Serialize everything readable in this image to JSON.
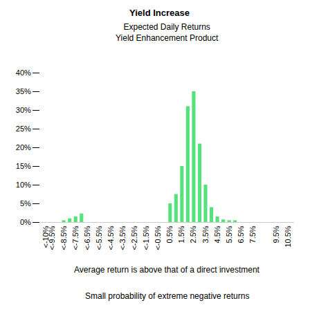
{
  "chart_data": {
    "type": "bar",
    "title": "Yield Increase",
    "subtitle": [
      "Expected Daily Returns",
      "Yield Enhancement Product"
    ],
    "x": [
      -8.5,
      -8,
      -7.5,
      -7,
      0.5,
      1,
      1.5,
      2,
      2.5,
      3,
      3.5,
      4,
      4.5,
      5,
      5.5,
      6
    ],
    "values": [
      0.5,
      1,
      1.5,
      2.3,
      5,
      7.5,
      15,
      31,
      35,
      21,
      10,
      4,
      1.5,
      0.7,
      0.5,
      0.5
    ],
    "color": "#55e27b",
    "xlim": [
      -10.5,
      11
    ],
    "xticks": [
      {
        "value": -10,
        "label": "<-10%"
      },
      {
        "value": -9.5,
        "label": "<-9.5%"
      },
      {
        "value": -8.5,
        "label": "<-8.5%"
      },
      {
        "value": -7.5,
        "label": "<-7.5%"
      },
      {
        "value": -6.5,
        "label": "<-6.5%"
      },
      {
        "value": -5.5,
        "label": "<-5.5%"
      },
      {
        "value": -4.5,
        "label": "<-4.5%"
      },
      {
        "value": -3.5,
        "label": "<-3.5%"
      },
      {
        "value": -2.5,
        "label": "<-2.5%"
      },
      {
        "value": -1.5,
        "label": "<-1.5%"
      },
      {
        "value": -0.5,
        "label": "<-0.5%"
      },
      {
        "value": 0.5,
        "label": "0.5%"
      },
      {
        "value": 1.5,
        "label": "1.5%"
      },
      {
        "value": 2.5,
        "label": "2.5%"
      },
      {
        "value": 3.5,
        "label": "3.5%"
      },
      {
        "value": 4.5,
        "label": "4.5%"
      },
      {
        "value": 5.5,
        "label": "5.5%"
      },
      {
        "value": 6.5,
        "label": "6.5%"
      },
      {
        "value": 7.5,
        "label": "7.5%"
      },
      {
        "value": 9.5,
        "label": "9.5%"
      },
      {
        "value": 10.5,
        "label": "10.5%"
      }
    ],
    "ylim": [
      0,
      40
    ],
    "yticks": [
      {
        "value": 0,
        "label": "0%"
      },
      {
        "value": 5,
        "label": "5%"
      },
      {
        "value": 10,
        "label": "10%"
      },
      {
        "value": 15,
        "label": "15%"
      },
      {
        "value": 20,
        "label": "20%"
      },
      {
        "value": 25,
        "label": "25%"
      },
      {
        "value": 30,
        "label": "30%"
      },
      {
        "value": 35,
        "label": "35%"
      },
      {
        "value": 40,
        "label": "40%"
      }
    ],
    "grid": false,
    "annotations": [
      "Average return is above that of a direct investment",
      "Small probability of extreme negative returns"
    ]
  }
}
